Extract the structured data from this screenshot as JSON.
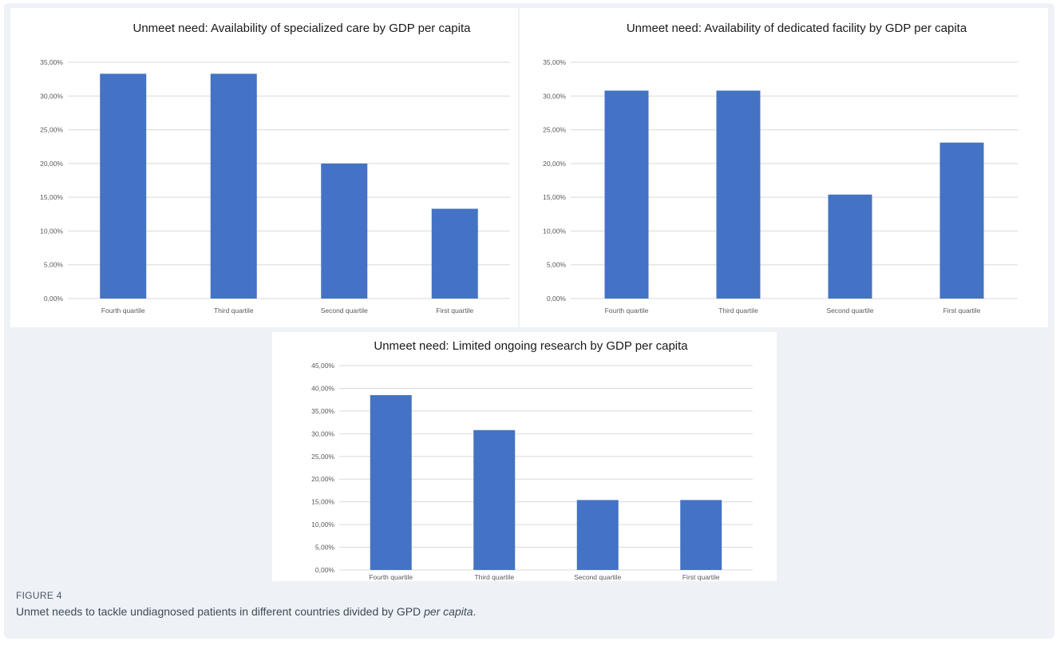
{
  "chart_data": [
    {
      "type": "bar",
      "title": "Unmeet need: Availability of specialized care  by GDP per capita",
      "categories": [
        "Fourth quartile",
        "Third quartile",
        "Second quartile",
        "First quartile"
      ],
      "values": [
        33.3,
        33.3,
        20.0,
        13.3
      ],
      "yticks": [
        "0,00%",
        "5,00%",
        "10,00%",
        "15,00%",
        "20,00%",
        "25,00%",
        "30,00%",
        "35,00%"
      ],
      "ylim": [
        0,
        35
      ],
      "grid": true,
      "color": "#4472c4"
    },
    {
      "type": "bar",
      "title": "Unmeet need: Availability of dedicated facility  by GDP per capita",
      "categories": [
        "Fourth quartile",
        "Third quartile",
        "Second quartile",
        "First quartile"
      ],
      "values": [
        30.8,
        30.8,
        15.4,
        23.1
      ],
      "yticks": [
        "0,00%",
        "5,00%",
        "10,00%",
        "15,00%",
        "20,00%",
        "25,00%",
        "30,00%",
        "35,00%"
      ],
      "ylim": [
        0,
        35
      ],
      "grid": true,
      "color": "#4472c4"
    },
    {
      "type": "bar",
      "title": "Unmeet need: Limited ongoing research by GDP per capita",
      "categories": [
        "Fourth quartile",
        "Third quartile",
        "Second quartile",
        "First quartile"
      ],
      "values": [
        38.5,
        30.8,
        15.4,
        15.4
      ],
      "yticks": [
        "0,00%",
        "5,00%",
        "10,00%",
        "15,00%",
        "20,00%",
        "25,00%",
        "30,00%",
        "35,00%",
        "40,00%",
        "45,00%"
      ],
      "ylim": [
        0,
        45
      ],
      "grid": true,
      "color": "#4472c4"
    }
  ],
  "caption": {
    "label": "FIGURE 4",
    "text_before": "Unmet needs to tackle undiagnosed patients in different countries divided by GPD ",
    "text_italic": "per capita",
    "text_after": "."
  }
}
